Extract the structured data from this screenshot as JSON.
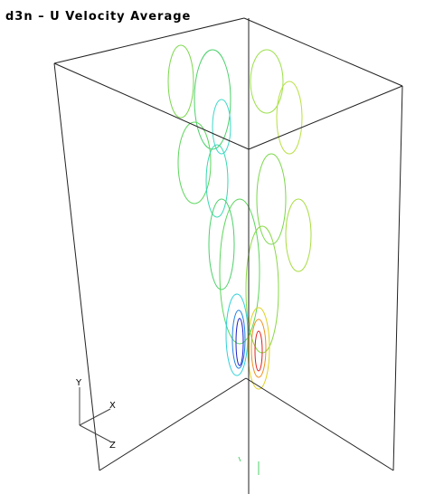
{
  "header": {
    "title": "d3n – U Velocity Average"
  },
  "axes": {
    "y_label": "Y",
    "x_label": "X",
    "z_label": "Z"
  }
}
